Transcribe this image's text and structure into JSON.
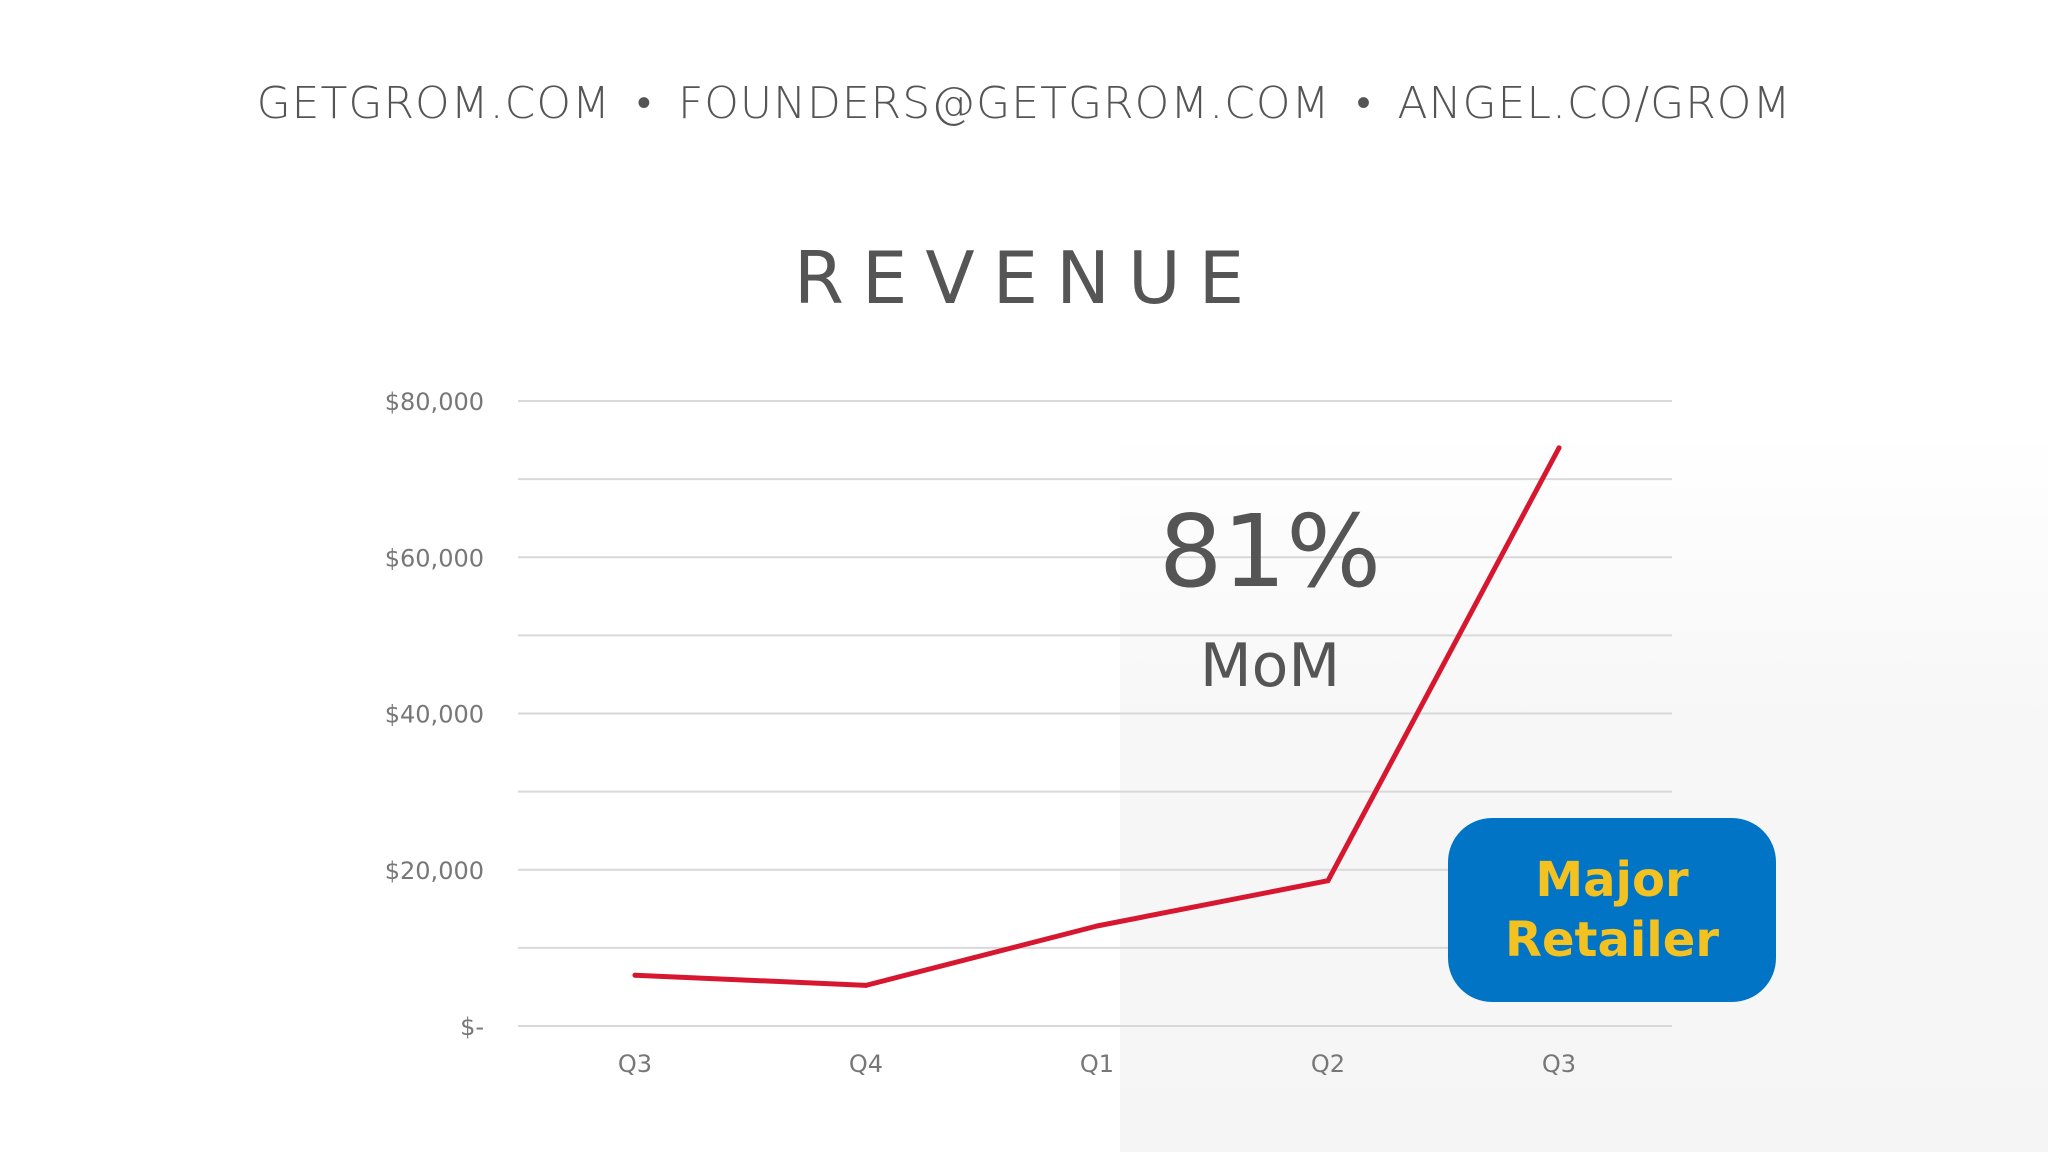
{
  "header": {
    "website": "GETGROM.COM",
    "email": "FOUNDERS@GETGROM.COM",
    "angel": "ANGEL.CO/GROM",
    "separator": "•"
  },
  "slide": {
    "title": "REVENUE"
  },
  "highlight": {
    "value": "81%",
    "label": "MoM"
  },
  "callout": {
    "line1": "Major",
    "line2": "Retailer",
    "background_color": "#0174c6",
    "text_color": "#f3c221"
  },
  "chart_data": {
    "type": "line",
    "title": "REVENUE",
    "xlabel": "",
    "ylabel": "",
    "categories": [
      "Q3",
      "Q4",
      "Q1",
      "Q2",
      "Q3"
    ],
    "series": [
      {
        "name": "Revenue",
        "values": [
          6500,
          5200,
          12800,
          18600,
          74000
        ],
        "color": "#d7172f"
      }
    ],
    "ylim": [
      0,
      80000
    ],
    "y_ticks": [
      {
        "value": 0,
        "label": "$-"
      },
      {
        "value": 20000,
        "label": "$20,000"
      },
      {
        "value": 40000,
        "label": "$40,000"
      },
      {
        "value": 60000,
        "label": "$60,000"
      },
      {
        "value": 80000,
        "label": "$80,000"
      }
    ],
    "minor_gridlines": [
      10000,
      30000,
      50000,
      70000
    ],
    "grid": true,
    "legend": "none"
  }
}
